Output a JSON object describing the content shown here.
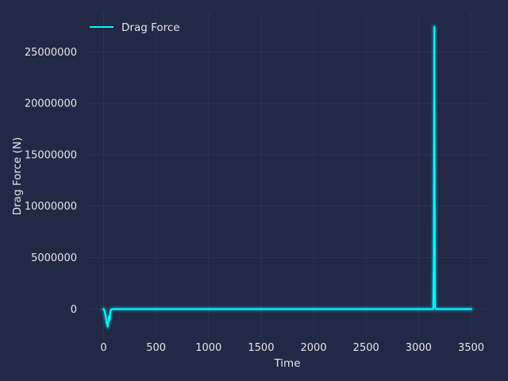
{
  "chart_data": {
    "type": "line",
    "title": "",
    "xlabel": "Time",
    "ylabel": "Drag Force (N)",
    "xlim": [
      -170,
      3670
    ],
    "ylim": [
      -2900000,
      28800000
    ],
    "xticks": [
      0,
      500,
      1000,
      1500,
      2000,
      2500,
      3000,
      3500
    ],
    "yticks": [
      0,
      5000000,
      10000000,
      15000000,
      20000000,
      25000000
    ],
    "xtick_labels": [
      "0",
      "500",
      "1000",
      "1500",
      "2000",
      "2500",
      "3000",
      "3500"
    ],
    "ytick_labels": [
      "0",
      "5000000",
      "10000000",
      "15000000",
      "20000000",
      "25000000"
    ],
    "grid": true,
    "legend_position": "top-left",
    "colors": {
      "background": "#212946",
      "grid": "#2a3459",
      "line": "#08F7FE",
      "text": "#e6e6e6"
    },
    "series": [
      {
        "name": "Drag Force",
        "x": [
          0,
          10,
          20,
          30,
          40,
          45,
          50,
          55,
          60,
          65,
          70,
          80,
          90,
          100,
          200,
          500,
          1000,
          1500,
          2000,
          2500,
          3000,
          3100,
          3140,
          3145,
          3150,
          3152,
          3154,
          3156,
          3158,
          3160,
          3170,
          3200,
          3300,
          3500
        ],
        "y": [
          0,
          -200000,
          -700000,
          -1300000,
          -1700000,
          -1200000,
          -700000,
          -1100000,
          -800000,
          -300000,
          -80000,
          -20000,
          -5000,
          0,
          0,
          0,
          0,
          0,
          0,
          0,
          0,
          0,
          0,
          5000000,
          27400000,
          18000000,
          9000000,
          1500000,
          300000,
          50000,
          0,
          0,
          0,
          0
        ]
      }
    ]
  }
}
